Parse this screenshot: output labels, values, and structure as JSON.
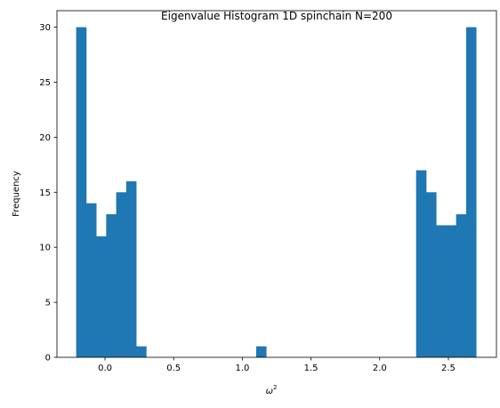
{
  "chart_data": {
    "type": "bar",
    "title": "Eigenvalue Histogram 1D spinchain N=200",
    "xlabel": "ω",
    "xlabel_superscript": "2",
    "ylabel": "Frequency",
    "xlim": [
      -0.35,
      2.85
    ],
    "ylim": [
      0,
      31.5
    ],
    "xticks": [
      0.0,
      0.5,
      1.0,
      1.5,
      2.0,
      2.5
    ],
    "xtick_labels": [
      "0.0",
      "0.5",
      "1.0",
      "1.5",
      "2.0",
      "2.5"
    ],
    "yticks": [
      0,
      5,
      10,
      15,
      20,
      25,
      30
    ],
    "ytick_labels": [
      "0",
      "5",
      "10",
      "15",
      "20",
      "25",
      "30"
    ],
    "bin_start": -0.21,
    "bin_width": 0.0728,
    "values": [
      30,
      14,
      11,
      13,
      15,
      16,
      1,
      0,
      0,
      0,
      0,
      0,
      0,
      0,
      0,
      0,
      0,
      0,
      1,
      0,
      0,
      0,
      0,
      0,
      0,
      0,
      0,
      0,
      0,
      0,
      0,
      0,
      0,
      0,
      17,
      15,
      12,
      12,
      13,
      30
    ],
    "bar_color": "#1f77b4",
    "grid": false
  }
}
